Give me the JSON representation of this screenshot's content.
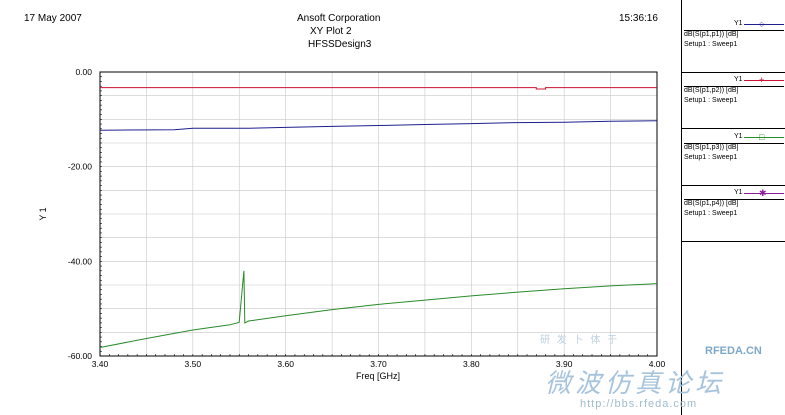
{
  "header": {
    "date": "17 May 2007",
    "company": "Ansoft Corporation",
    "plot_title": "XY Plot 2",
    "design": "HFSSDesign3",
    "time": "15:36:16"
  },
  "watermark": {
    "small_chinese": "研 发 卜 体 于",
    "logo": "RFEDA.CN",
    "forum": "微波仿真论坛",
    "url": "http://bbs.rfeda.com"
  },
  "legend": [
    {
      "name": "Y1",
      "expr": "dB(S(p1,p1)) [dB]",
      "sweep": "Setup1 : Sweep1",
      "color": "#1f1f8f",
      "marker": "○"
    },
    {
      "name": "Y1",
      "expr": "dB(S(p1,p2)) [dB]",
      "sweep": "Setup1 : Sweep1",
      "color": "#cc1133",
      "marker": "+"
    },
    {
      "name": "Y1",
      "expr": "dB(S(p1,p3)) [dB]",
      "sweep": "Setup1 : Sweep1",
      "color": "#2a8a2a",
      "marker": "□"
    },
    {
      "name": "Y1",
      "expr": "dB(S(p1,p4)) [dB]",
      "sweep": "Setup1 : Sweep1",
      "color": "#8a1a9a",
      "marker": "✱"
    }
  ],
  "chart_data": {
    "type": "line",
    "xlabel": "Freq [GHz]",
    "ylabel": "Y 1",
    "xlim": [
      3.4,
      4.0
    ],
    "ylim": [
      -60,
      0
    ],
    "x_ticks": [
      "3.40",
      "3.50",
      "3.60",
      "3.70",
      "3.80",
      "3.90",
      "4.00"
    ],
    "y_ticks": [
      "0.00",
      "-20.00",
      "-40.00",
      "-60.00"
    ],
    "grid": true,
    "legend_position": "right",
    "series": [
      {
        "name": "dB(S(p1,p1))",
        "color": "#1f1f8f",
        "points": [
          [
            3.4,
            -12.3
          ],
          [
            3.48,
            -12.2
          ],
          [
            3.5,
            -11.9
          ],
          [
            3.56,
            -11.9
          ],
          [
            3.6,
            -11.7
          ],
          [
            3.65,
            -11.5
          ],
          [
            3.7,
            -11.3
          ],
          [
            3.75,
            -11.1
          ],
          [
            3.8,
            -10.9
          ],
          [
            3.85,
            -10.7
          ],
          [
            3.9,
            -10.6
          ],
          [
            3.95,
            -10.4
          ],
          [
            4.0,
            -10.3
          ]
        ]
      },
      {
        "name": "dB(S(p1,p2))",
        "color": "#cc1133",
        "points": [
          [
            3.4,
            -3.3
          ],
          [
            3.5,
            -3.3
          ],
          [
            3.6,
            -3.3
          ],
          [
            3.7,
            -3.3
          ],
          [
            3.8,
            -3.3
          ],
          [
            3.87,
            -3.3
          ],
          [
            3.87,
            -3.6
          ],
          [
            3.88,
            -3.6
          ],
          [
            3.88,
            -3.3
          ],
          [
            3.9,
            -3.3
          ],
          [
            4.0,
            -3.3
          ]
        ]
      },
      {
        "name": "dB(S(p1,p3))",
        "color": "#2a8a2a",
        "points": [
          [
            3.4,
            -58.2
          ],
          [
            3.45,
            -56.3
          ],
          [
            3.5,
            -54.5
          ],
          [
            3.54,
            -53.4
          ],
          [
            3.55,
            -52.9
          ],
          [
            3.555,
            -42.0
          ],
          [
            3.556,
            -53.0
          ],
          [
            3.56,
            -52.6
          ],
          [
            3.6,
            -51.5
          ],
          [
            3.65,
            -50.2
          ],
          [
            3.7,
            -49.1
          ],
          [
            3.75,
            -48.2
          ],
          [
            3.8,
            -47.3
          ],
          [
            3.85,
            -46.5
          ],
          [
            3.9,
            -45.8
          ],
          [
            3.95,
            -45.2
          ],
          [
            4.0,
            -44.7
          ]
        ]
      },
      {
        "name": "dB(S(p1,p4))",
        "color": "#8a1a9a",
        "points": []
      }
    ]
  }
}
